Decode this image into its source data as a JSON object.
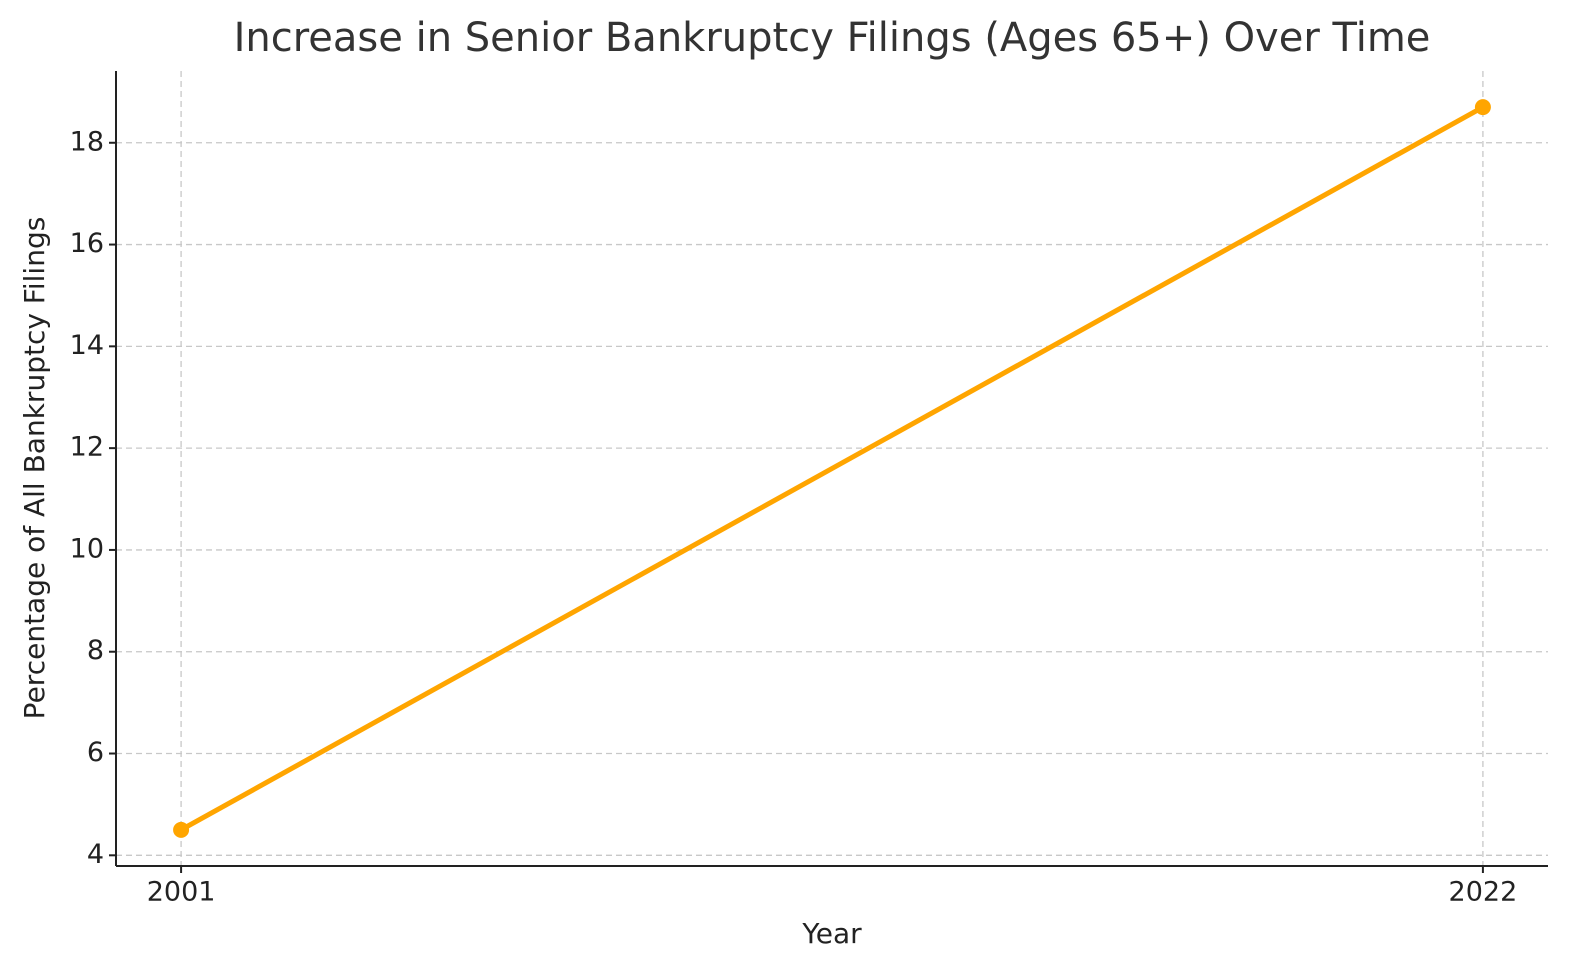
{
  "chart_data": {
    "type": "line",
    "title": "Increase in Senior Bankruptcy Filings (Ages 65+) Over Time",
    "x_label": "Year",
    "y_label": "Percentage of All Bankruptcy Filings",
    "x": [
      2001,
      2022
    ],
    "series": [
      {
        "color": "#ffa500",
        "values": [
          4.5,
          18.7
        ]
      }
    ],
    "xlim": [
      1999.95,
      2023.05
    ],
    "ylim": [
      3.79,
      19.41
    ],
    "xticks": [
      2001,
      2022
    ],
    "yticks": [
      4,
      6,
      8,
      10,
      12,
      14,
      16,
      18
    ],
    "grid": true
  }
}
